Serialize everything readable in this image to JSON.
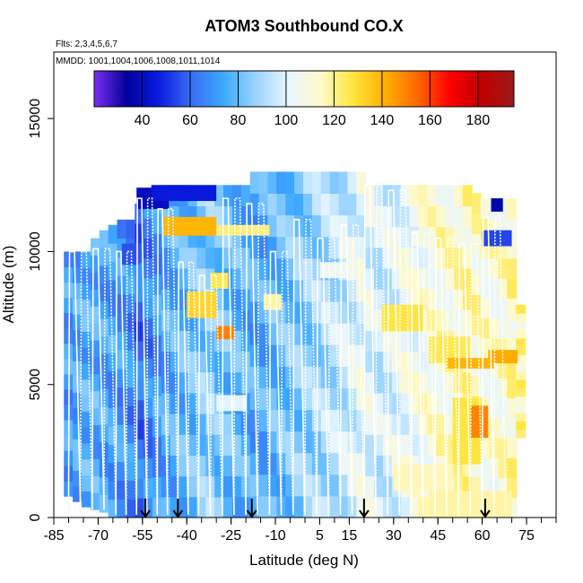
{
  "chart_data": {
    "type": "heatmap",
    "title": "ATOM3 Southbound CO.X",
    "flights_text": "Flts: 2,3,4,5,6,7",
    "dates_text": "MMDD: 1001,1004,1006,1008,1011,1014",
    "xlabel": "Latitude (deg N)",
    "ylabel": "Altitude (m)",
    "xlim": [
      -85,
      85
    ],
    "ylim": [
      0,
      17500
    ],
    "x_ticks": [
      -85,
      -70,
      -55,
      -40,
      -25,
      -10,
      5,
      15,
      30,
      45,
      60,
      75
    ],
    "x_tick_labels": [
      "-85",
      "-70",
      "-55",
      "-40",
      "-25",
      "-10",
      "5",
      "15",
      "30",
      "45",
      "60",
      "75"
    ],
    "y_ticks": [
      0,
      5000,
      10000,
      15000
    ],
    "y_tick_labels": [
      "0",
      "5000",
      "10000",
      "15000"
    ],
    "colorbar": {
      "min": 20,
      "max": 195,
      "ticks": [
        40,
        60,
        80,
        100,
        120,
        140,
        160,
        180
      ],
      "tick_labels": [
        "40",
        "60",
        "80",
        "100",
        "120",
        "140",
        "160",
        "180"
      ],
      "colors": [
        "#7b2ff0",
        "#00009a",
        "#0a1ae0",
        "#3a6cf2",
        "#3ca8ff",
        "#9ad4ff",
        "#e8f6ff",
        "#fffacc",
        "#ffe640",
        "#ffb000",
        "#ff6a00",
        "#ff0000",
        "#c00000",
        "#9a1a1a"
      ]
    },
    "markers_lat": [
      -54,
      -43,
      -18,
      20,
      61
    ],
    "series": [
      {
        "lat": -80,
        "lo": 800,
        "hi": 10000,
        "co": 72
      },
      {
        "lat": -77,
        "lo": 600,
        "hi": 10000,
        "co": 74
      },
      {
        "lat": -74,
        "lo": 400,
        "hi": 10000,
        "co": 76
      },
      {
        "lat": -71,
        "lo": 300,
        "hi": 10500,
        "co": 75
      },
      {
        "lat": -68,
        "lo": 200,
        "hi": 10800,
        "co": 73
      },
      {
        "lat": -65,
        "lo": 0,
        "hi": 11000,
        "co": 72
      },
      {
        "lat": -62,
        "lo": 0,
        "hi": 11200,
        "co": 70
      },
      {
        "lat": -59,
        "lo": 0,
        "hi": 11200,
        "co": 68
      },
      {
        "lat": -56,
        "lo": 0,
        "hi": 11800,
        "co": 62
      },
      {
        "lat": -53,
        "lo": 0,
        "hi": 12000,
        "co": 66
      },
      {
        "lat": -50,
        "lo": 0,
        "hi": 12200,
        "co": 70
      },
      {
        "lat": -47,
        "lo": 0,
        "hi": 12500,
        "co": 74
      },
      {
        "lat": -44,
        "lo": 0,
        "hi": 12500,
        "co": 76
      },
      {
        "lat": -41,
        "lo": 0,
        "hi": 12500,
        "co": 78
      },
      {
        "lat": -38,
        "lo": 0,
        "hi": 12500,
        "co": 80
      },
      {
        "lat": -35,
        "lo": 0,
        "hi": 12500,
        "co": 84
      },
      {
        "lat": -32,
        "lo": 0,
        "hi": 12500,
        "co": 86
      },
      {
        "lat": -29,
        "lo": 0,
        "hi": 12500,
        "co": 82
      },
      {
        "lat": -26,
        "lo": 0,
        "hi": 12500,
        "co": 80
      },
      {
        "lat": -23,
        "lo": 0,
        "hi": 12500,
        "co": 78
      },
      {
        "lat": -20,
        "lo": 0,
        "hi": 12500,
        "co": 76
      },
      {
        "lat": -17,
        "lo": 0,
        "hi": 13000,
        "co": 74
      },
      {
        "lat": -14,
        "lo": 0,
        "hi": 13000,
        "co": 75
      },
      {
        "lat": -11,
        "lo": 0,
        "hi": 13000,
        "co": 78
      },
      {
        "lat": -8,
        "lo": 0,
        "hi": 13000,
        "co": 80
      },
      {
        "lat": -5,
        "lo": 0,
        "hi": 13000,
        "co": 82
      },
      {
        "lat": -2,
        "lo": 0,
        "hi": 13000,
        "co": 84
      },
      {
        "lat": 1,
        "lo": 0,
        "hi": 13000,
        "co": 86
      },
      {
        "lat": 4,
        "lo": 0,
        "hi": 13000,
        "co": 88
      },
      {
        "lat": 7,
        "lo": 0,
        "hi": 13000,
        "co": 90
      },
      {
        "lat": 10,
        "lo": 0,
        "hi": 13000,
        "co": 92
      },
      {
        "lat": 13,
        "lo": 0,
        "hi": 13000,
        "co": 95
      },
      {
        "lat": 16,
        "lo": 0,
        "hi": 13000,
        "co": 98
      },
      {
        "lat": 19,
        "lo": 0,
        "hi": 13000,
        "co": 102
      },
      {
        "lat": 22,
        "lo": 0,
        "hi": 12500,
        "co": 100
      },
      {
        "lat": 25,
        "lo": 0,
        "hi": 12500,
        "co": 96
      },
      {
        "lat": 28,
        "lo": 0,
        "hi": 12500,
        "co": 98
      },
      {
        "lat": 31,
        "lo": 0,
        "hi": 12500,
        "co": 100
      },
      {
        "lat": 34,
        "lo": 0,
        "hi": 12500,
        "co": 104
      },
      {
        "lat": 37,
        "lo": 0,
        "hi": 12500,
        "co": 106
      },
      {
        "lat": 40,
        "lo": 0,
        "hi": 12500,
        "co": 108
      },
      {
        "lat": 43,
        "lo": 0,
        "hi": 12500,
        "co": 110
      },
      {
        "lat": 46,
        "lo": 0,
        "hi": 12500,
        "co": 112
      },
      {
        "lat": 49,
        "lo": 0,
        "hi": 12500,
        "co": 112
      },
      {
        "lat": 52,
        "lo": 0,
        "hi": 12500,
        "co": 114
      },
      {
        "lat": 55,
        "lo": 0,
        "hi": 12500,
        "co": 116
      },
      {
        "lat": 58,
        "lo": 0,
        "hi": 12200,
        "co": 114
      },
      {
        "lat": 61,
        "lo": 0,
        "hi": 12000,
        "co": 112
      },
      {
        "lat": 64,
        "lo": 0,
        "hi": 12000,
        "co": 110
      },
      {
        "lat": 67,
        "lo": 0,
        "hi": 12000,
        "co": 112
      },
      {
        "lat": 70,
        "lo": 0,
        "hi": 12000,
        "co": 116
      },
      {
        "lat": 73,
        "lo": 3000,
        "hi": 8000,
        "co": 118
      }
    ],
    "patches": [
      {
        "lat0": -48,
        "lat1": -30,
        "alt0": 10600,
        "alt1": 11300,
        "co": 140
      },
      {
        "lat0": -30,
        "lat1": -12,
        "alt0": 10600,
        "alt1": 11000,
        "co": 122
      },
      {
        "lat0": -57,
        "lat1": -46,
        "alt0": 11600,
        "alt1": 12400,
        "co": 40
      },
      {
        "lat0": -52,
        "lat1": -30,
        "alt0": 11900,
        "alt1": 12500,
        "co": 46
      },
      {
        "lat0": -40,
        "lat1": -30,
        "alt0": 7500,
        "alt1": 8500,
        "co": 132
      },
      {
        "lat0": -30,
        "lat1": -24,
        "alt0": 6700,
        "alt1": 7200,
        "co": 150
      },
      {
        "lat0": -32,
        "lat1": -26,
        "alt0": 8600,
        "alt1": 9200,
        "co": 126
      },
      {
        "lat0": -14,
        "lat1": -8,
        "alt0": 7800,
        "alt1": 8400,
        "co": 118
      },
      {
        "lat0": 26,
        "lat1": 40,
        "alt0": 7000,
        "alt1": 8000,
        "co": 128
      },
      {
        "lat0": 42,
        "lat1": 56,
        "alt0": 5800,
        "alt1": 6800,
        "co": 126
      },
      {
        "lat0": 48,
        "lat1": 64,
        "alt0": 5600,
        "alt1": 6000,
        "co": 140
      },
      {
        "lat0": 62,
        "lat1": 72,
        "alt0": 5800,
        "alt1": 6300,
        "co": 142
      },
      {
        "lat0": 50,
        "lat1": 60,
        "alt0": 2000,
        "alt1": 4500,
        "co": 128
      },
      {
        "lat0": 56,
        "lat1": 62,
        "alt0": 3000,
        "alt1": 4200,
        "co": 150
      },
      {
        "lat0": 30,
        "lat1": 50,
        "alt0": 1000,
        "alt1": 2000,
        "co": 116
      },
      {
        "lat0": 42,
        "lat1": 70,
        "alt0": 0,
        "alt1": 1000,
        "co": 118
      },
      {
        "lat0": 60,
        "lat1": 70,
        "alt0": 10200,
        "alt1": 10800,
        "co": 54
      },
      {
        "lat0": 63,
        "lat1": 67,
        "alt0": 11500,
        "alt1": 12000,
        "co": 36
      },
      {
        "lat0": -62,
        "lat1": -56,
        "alt0": 9500,
        "alt1": 10300,
        "co": 56
      },
      {
        "lat0": -30,
        "lat1": -20,
        "alt0": 4000,
        "alt1": 4600,
        "co": 100
      },
      {
        "lat0": 5,
        "lat1": 15,
        "alt0": 9000,
        "alt1": 9600,
        "co": 104
      },
      {
        "lat0": 36,
        "lat1": 44,
        "alt0": 10200,
        "alt1": 10800,
        "co": 108
      }
    ],
    "profiles": [
      {
        "lat0": -80,
        "lat1": -72,
        "lo": 500,
        "hi": 10000
      },
      {
        "lat0": -72,
        "lat1": -64,
        "lo": 300,
        "hi": 10100
      },
      {
        "lat0": -64,
        "lat1": -57,
        "lo": 100,
        "hi": 10000
      },
      {
        "lat0": -57,
        "lat1": -50,
        "lo": 100,
        "hi": 12000
      },
      {
        "lat0": -50,
        "lat1": -43,
        "lo": 100,
        "hi": 11600
      },
      {
        "lat0": -43,
        "lat1": -36,
        "lo": 100,
        "hi": 9600
      },
      {
        "lat0": -36,
        "lat1": -28,
        "lo": 100,
        "hi": 9100
      },
      {
        "lat0": -28,
        "lat1": -20,
        "lo": 100,
        "hi": 12000
      },
      {
        "lat0": -20,
        "lat1": -12,
        "lo": 100,
        "hi": 11800
      },
      {
        "lat0": -12,
        "lat1": -4,
        "lo": 100,
        "hi": 10000
      },
      {
        "lat0": -4,
        "lat1": 4,
        "lo": 100,
        "hi": 11200
      },
      {
        "lat0": 4,
        "lat1": 12,
        "lo": 100,
        "hi": 10500
      },
      {
        "lat0": 12,
        "lat1": 20,
        "lo": 100,
        "hi": 11000
      },
      {
        "lat0": 20,
        "lat1": 28,
        "lo": 100,
        "hi": 12500
      },
      {
        "lat0": 28,
        "lat1": 36,
        "lo": 100,
        "hi": 12300
      },
      {
        "lat0": 36,
        "lat1": 44,
        "lo": 100,
        "hi": 10700
      },
      {
        "lat0": 44,
        "lat1": 52,
        "lo": 100,
        "hi": 10500
      },
      {
        "lat0": 52,
        "lat1": 60,
        "lo": 100,
        "hi": 10300
      },
      {
        "lat0": 60,
        "lat1": 68,
        "lo": 100,
        "hi": 11300
      }
    ]
  }
}
